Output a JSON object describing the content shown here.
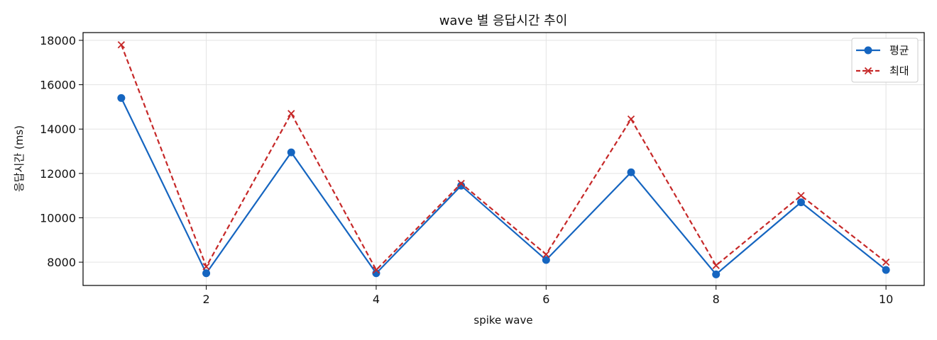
{
  "chart_data": {
    "type": "line",
    "title": "wave 별 응답시간 추이",
    "xlabel": "spike wave",
    "ylabel": "응답시간 (ms)",
    "x": [
      1,
      2,
      3,
      4,
      5,
      6,
      7,
      8,
      9,
      10
    ],
    "xlim": [
      0.55,
      10.45
    ],
    "ylim": [
      6950,
      18350
    ],
    "xticks": [
      2,
      4,
      6,
      8,
      10
    ],
    "yticks": [
      8000,
      10000,
      12000,
      14000,
      16000,
      18000
    ],
    "grid": true,
    "legend_position": "top-right",
    "series": [
      {
        "name": "평균",
        "values": [
          15400,
          7500,
          12950,
          7500,
          11450,
          8100,
          12050,
          7450,
          10700,
          7650
        ],
        "color": "#1565c0",
        "line_style": "solid",
        "marker": "circle"
      },
      {
        "name": "최대",
        "values": [
          17800,
          7800,
          14700,
          7650,
          11550,
          8350,
          14450,
          7850,
          11000,
          8000
        ],
        "color": "#c62828",
        "line_style": "dashed",
        "marker": "x"
      }
    ]
  }
}
